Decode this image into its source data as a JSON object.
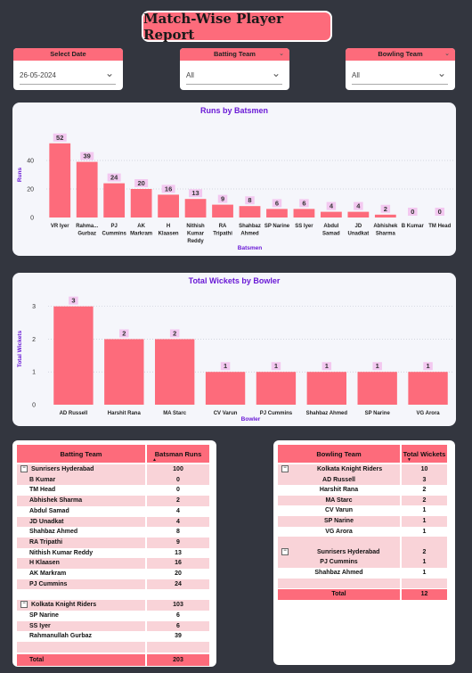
{
  "report_title": "Match-Wise Player Report",
  "slicers": {
    "date": {
      "label": "Select Date",
      "value": "26-05-2024"
    },
    "batting": {
      "label": "Batting Team",
      "value": "All"
    },
    "bowling": {
      "label": "Bowling Team",
      "value": "All"
    }
  },
  "chart_data": [
    {
      "type": "bar",
      "title": "Runs by Batsmen",
      "xlabel": "Batsmen",
      "ylabel": "Runs",
      "ylim": [
        0,
        60
      ],
      "yticks": [
        "0",
        "20",
        "40"
      ],
      "categories": [
        [
          "VR Iyer"
        ],
        [
          "Rahma...",
          "Gurbaz"
        ],
        [
          "PJ",
          "Cummins"
        ],
        [
          "AK",
          "Markram"
        ],
        [
          "H",
          "Klaasen"
        ],
        [
          "Nithish",
          "Kumar",
          "Reddy"
        ],
        [
          "RA",
          "Tripathi"
        ],
        [
          "Shahbaz",
          "Ahmed"
        ],
        [
          "SP Narine"
        ],
        [
          "SS Iyer"
        ],
        [
          "Abdul",
          "Samad"
        ],
        [
          "JD",
          "Unadkat"
        ],
        [
          "Abhishek",
          "Sharma"
        ],
        [
          "B Kumar"
        ],
        [
          "TM Head"
        ]
      ],
      "values": [
        52,
        39,
        24,
        20,
        16,
        13,
        9,
        8,
        6,
        6,
        4,
        4,
        2,
        0,
        0
      ],
      "bar_color": "#fd6b7b",
      "label_bg": "#f3c8f0",
      "grid": true
    },
    {
      "type": "bar",
      "title": "Total Wickets by Bowler",
      "xlabel": "Bowler",
      "ylabel": "Total Wickets",
      "ylim": [
        0,
        3.4
      ],
      "yticks": [
        "0",
        "1",
        "2",
        "3"
      ],
      "categories": [
        [
          "AD Russell"
        ],
        [
          "Harshit Rana"
        ],
        [
          "MA Starc"
        ],
        [
          "CV Varun"
        ],
        [
          "PJ Cummins"
        ],
        [
          "Shahbaz Ahmed"
        ],
        [
          "SP Narine"
        ],
        [
          "VG Arora"
        ]
      ],
      "values": [
        3,
        2,
        2,
        1,
        1,
        1,
        1,
        1
      ],
      "bar_color": "#fd6b7b",
      "label_bg": "#f3c8f0",
      "grid": true
    }
  ],
  "batting_table": {
    "headers": [
      "Batting Team",
      "Batsman Runs"
    ],
    "rows": [
      {
        "type": "group",
        "name": "Sunrisers Hyderabad",
        "value": "100"
      },
      {
        "type": "item",
        "name": "B Kumar",
        "value": "0"
      },
      {
        "type": "item",
        "name": "TM Head",
        "value": "0"
      },
      {
        "type": "item",
        "name": "Abhishek Sharma",
        "value": "2"
      },
      {
        "type": "item",
        "name": "Abdul Samad",
        "value": "4"
      },
      {
        "type": "item",
        "name": "JD Unadkat",
        "value": "4"
      },
      {
        "type": "item",
        "name": "Shahbaz Ahmed",
        "value": "8"
      },
      {
        "type": "item",
        "name": "RA Tripathi",
        "value": "9"
      },
      {
        "type": "item",
        "name": "Nithish Kumar Reddy",
        "value": "13"
      },
      {
        "type": "item",
        "name": "H Klaasen",
        "value": "16"
      },
      {
        "type": "item",
        "name": "AK Markram",
        "value": "20"
      },
      {
        "type": "item",
        "name": "PJ Cummins",
        "value": "24"
      },
      {
        "type": "blank",
        "name": "",
        "value": ""
      },
      {
        "type": "group",
        "name": "Kolkata Knight Riders",
        "value": "103"
      },
      {
        "type": "item",
        "name": "SP Narine",
        "value": "6"
      },
      {
        "type": "item",
        "name": "SS Iyer",
        "value": "6"
      },
      {
        "type": "item",
        "name": "Rahmanullah Gurbaz",
        "value": "39"
      },
      {
        "type": "blank",
        "name": "",
        "value": ""
      }
    ],
    "total_label": "Total",
    "total_value": "203"
  },
  "bowling_table": {
    "headers": [
      "Bowling Team",
      "Total Wickets"
    ],
    "rows": [
      {
        "type": "group",
        "name": "Kolkata Knight Riders",
        "value": "10"
      },
      {
        "type": "item",
        "name": "AD Russell",
        "value": "3"
      },
      {
        "type": "item",
        "name": "Harshit Rana",
        "value": "2"
      },
      {
        "type": "item",
        "name": "MA Starc",
        "value": "2"
      },
      {
        "type": "item",
        "name": "CV Varun",
        "value": "1"
      },
      {
        "type": "item",
        "name": "SP Narine",
        "value": "1"
      },
      {
        "type": "item",
        "name": "VG Arora",
        "value": "1"
      },
      {
        "type": "blank",
        "name": "",
        "value": ""
      },
      {
        "type": "group",
        "name": "Sunrisers Hyderabad",
        "value": "2"
      },
      {
        "type": "item",
        "name": "PJ Cummins",
        "value": "1"
      },
      {
        "type": "item",
        "name": "Shahbaz Ahmed",
        "value": "1"
      },
      {
        "type": "blank",
        "name": "",
        "value": ""
      }
    ],
    "total_label": "Total",
    "total_value": "12"
  }
}
